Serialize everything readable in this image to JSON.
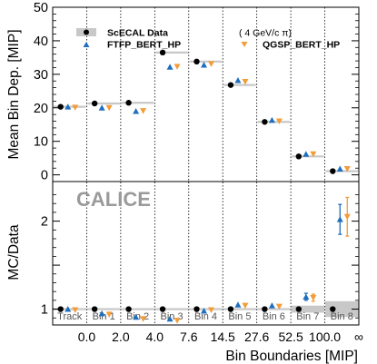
{
  "chart_data": [
    {
      "type": "scatter",
      "panel": "top",
      "ylabel": "Mean Bin Dep. [MIP]",
      "ylim": [
        -2,
        50
      ],
      "yticks": [
        0,
        10,
        20,
        30,
        40,
        50
      ],
      "categories": [
        "Track",
        "Bin 1",
        "Bin 2",
        "Bin 3",
        "Bin 4",
        "Bin 5",
        "Bin 6",
        "Bin 7",
        "Bin 8"
      ],
      "legend_placement": "top",
      "legend_note": "( 4 GeV/c π)",
      "data_band_color": "#c8c8c8",
      "series": [
        {
          "name": "ScECAL Data",
          "marker": "circle",
          "color": "#000000",
          "values": [
            20.3,
            21.3,
            21.5,
            36.5,
            33.8,
            26.8,
            15.8,
            5.5,
            1.1
          ]
        },
        {
          "name": "FTFP_BERT_HP",
          "marker": "triangle-up",
          "color": "#1f6fbf",
          "values": [
            20.3,
            20.0,
            19.0,
            32.2,
            32.8,
            28.2,
            16.3,
            6.2,
            1.8
          ]
        },
        {
          "name": "QGSP_BERT_HP",
          "marker": "triangle-down",
          "color": "#f39c3a",
          "values": [
            20.1,
            20.0,
            19.1,
            32.3,
            33.1,
            27.8,
            16.0,
            6.2,
            1.8
          ]
        }
      ]
    },
    {
      "type": "scatter",
      "panel": "bottom",
      "ylabel": "MC/Data",
      "ylim": [
        0.82,
        2.45
      ],
      "yticks": [
        1,
        1.5,
        2
      ],
      "ytick_labels": [
        "1",
        "",
        "2"
      ],
      "watermark": "CALICE",
      "xlabel": "Bin Boundaries [MIP]",
      "x_boundaries": [
        "0.0",
        "2.0",
        "4.0",
        "7.6",
        "14.5",
        "27.6",
        "52.5",
        "100.0",
        "∞"
      ],
      "categories": [
        "Track",
        "Bin 1",
        "Bin 2",
        "Bin 3",
        "Bin 4",
        "Bin 5",
        "Bin 6",
        "Bin 7",
        "Bin 8"
      ],
      "series": [
        {
          "name": "ScECAL Data",
          "marker": "circle",
          "color": "#000000",
          "values": [
            1.0,
            1.0,
            1.0,
            1.0,
            1.0,
            1.0,
            1.0,
            1.0,
            1.0
          ],
          "band": [
            0.005,
            0.005,
            0.005,
            0.005,
            0.005,
            0.01,
            0.01,
            0.04,
            0.09
          ]
        },
        {
          "name": "FTFP_BERT_HP",
          "marker": "triangle-up",
          "color": "#1f6fbf",
          "values": [
            1.0,
            0.95,
            0.91,
            0.89,
            0.98,
            1.05,
            1.04,
            1.14,
            2.02
          ],
          "err": [
            0,
            0,
            0,
            0,
            0,
            0,
            0,
            0.04,
            0.17
          ]
        },
        {
          "name": "QGSP_BERT_HP",
          "marker": "triangle-down",
          "color": "#f39c3a",
          "values": [
            0.99,
            0.94,
            0.89,
            0.87,
            0.99,
            1.04,
            1.03,
            1.13,
            2.05
          ],
          "err": [
            0,
            0,
            0,
            0,
            0,
            0,
            0,
            0.04,
            0.22
          ]
        }
      ]
    }
  ]
}
